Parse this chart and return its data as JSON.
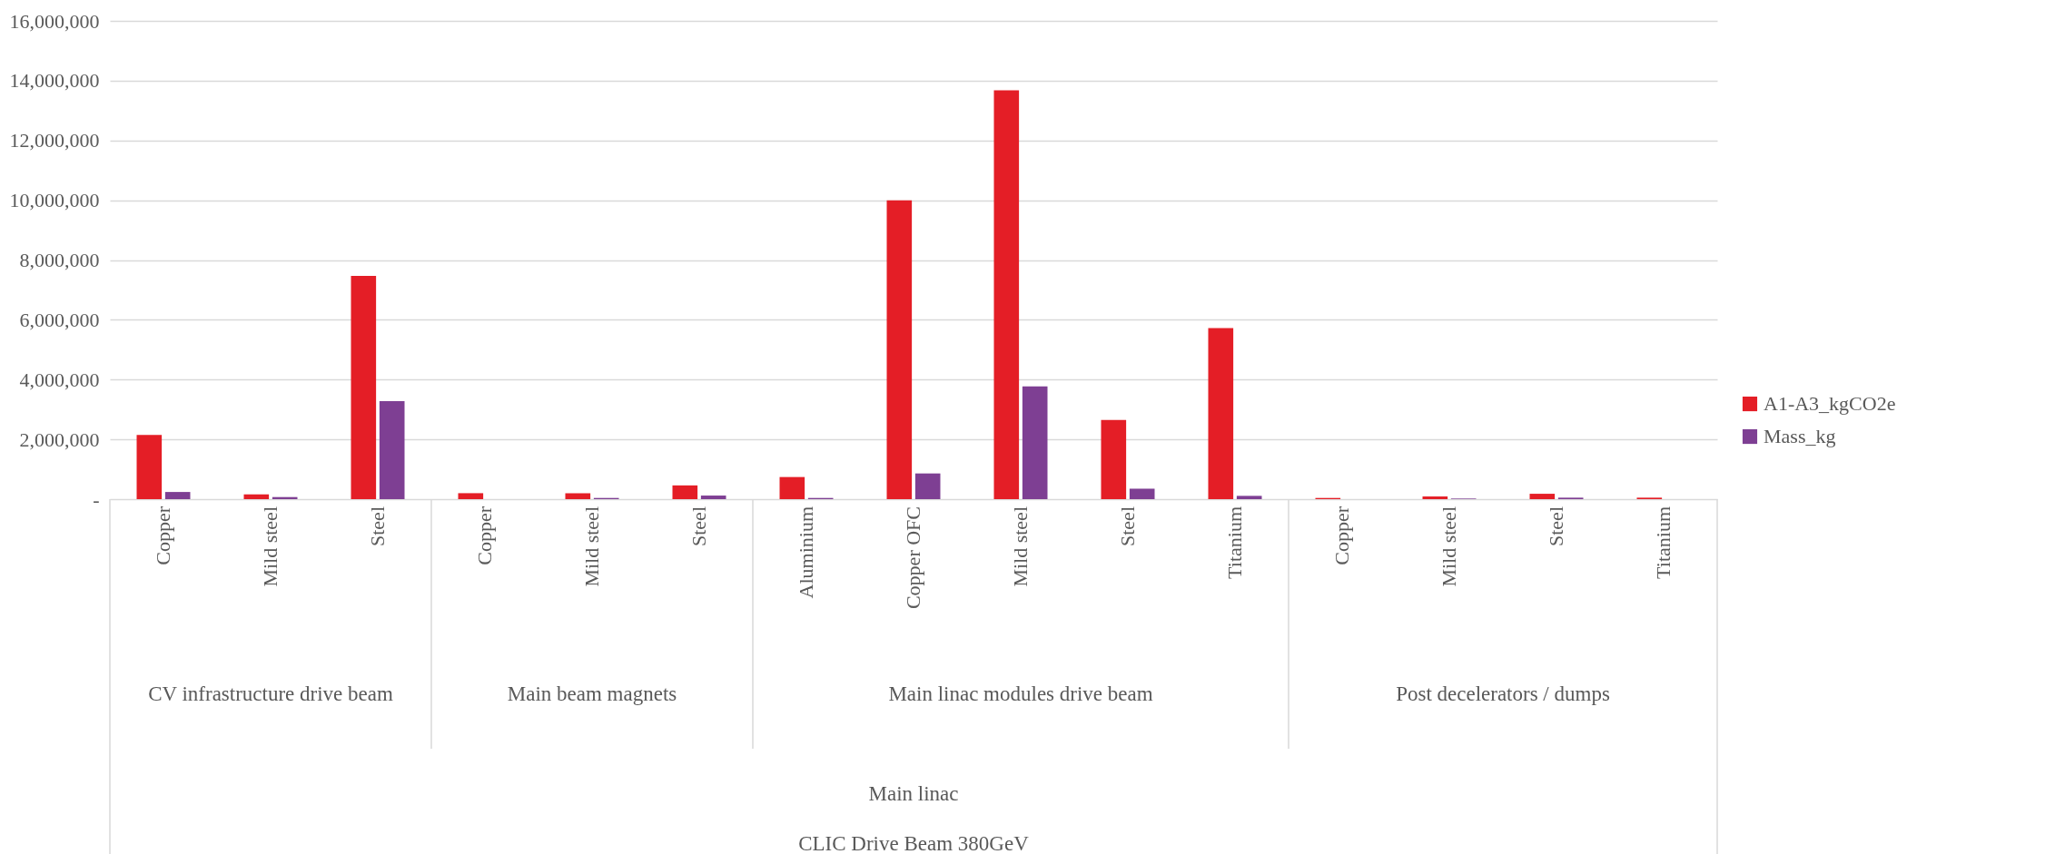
{
  "chart_data": {
    "type": "bar",
    "categories": [
      "Copper",
      "Mild steel",
      "Steel",
      "Copper",
      "Mild steel",
      "Steel",
      "Aluminium",
      "Copper OFC",
      "Mild steel",
      "Steel",
      "Titanium",
      "Copper",
      "Mild steel",
      "Steel",
      "Titanium"
    ],
    "series": [
      {
        "name": "A1-A3_kgCO2e",
        "color": "#e41e26",
        "values": [
          2150000,
          160000,
          7470000,
          200000,
          200000,
          460000,
          740000,
          10000000,
          13680000,
          2650000,
          5720000,
          40000,
          90000,
          180000,
          50000
        ]
      },
      {
        "name": "Mass_kg",
        "color": "#7e3f93",
        "values": [
          240000,
          70000,
          3280000,
          0,
          40000,
          120000,
          40000,
          860000,
          3770000,
          350000,
          110000,
          0,
          20000,
          50000,
          0
        ]
      }
    ],
    "ylim": [
      0,
      16000000
    ],
    "yticks": [
      {
        "value": 0,
        "label": "-"
      },
      {
        "value": 2000000,
        "label": "2,000,000"
      },
      {
        "value": 4000000,
        "label": "4,000,000"
      },
      {
        "value": 6000000,
        "label": "6,000,000"
      },
      {
        "value": 8000000,
        "label": "8,000,000"
      },
      {
        "value": 10000000,
        "label": "10,000,000"
      },
      {
        "value": 12000000,
        "label": "12,000,000"
      },
      {
        "value": 14000000,
        "label": "14,000,000"
      },
      {
        "value": 16000000,
        "label": "16,000,000"
      }
    ],
    "annotations": [
      "CV infrastructure drive beam",
      "Main beam magnets",
      "Main linac modules drive beam",
      "Post decelerators / dumps",
      "Main linac",
      "CLIC Drive Beam 380GeV"
    ],
    "grid": "y",
    "legend": "right"
  }
}
